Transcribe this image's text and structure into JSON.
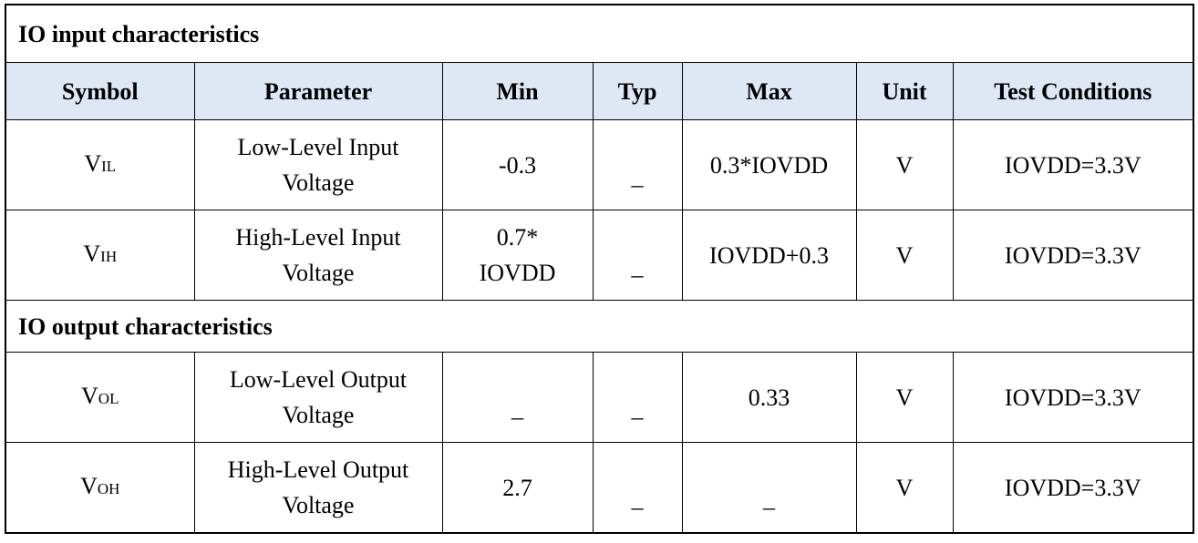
{
  "table": {
    "columns": [
      "Symbol",
      "Parameter",
      "Min",
      "Typ",
      "Max",
      "Unit",
      "Test Conditions"
    ],
    "sections": [
      {
        "title": "IO input characteristics",
        "rows": [
          [
            {
              "main": "V",
              "sub": "IL"
            },
            "Low-Level Input\nVoltage",
            "-0.3",
            "_",
            "0.3*IOVDD",
            "V",
            "IOVDD=3.3V"
          ],
          [
            {
              "main": "V",
              "sub": "IH"
            },
            "High-Level Input\nVoltage",
            "0.7*\nIOVDD",
            "_",
            "IOVDD+0.3",
            "V",
            "IOVDD=3.3V"
          ]
        ]
      },
      {
        "title": "IO output characteristics",
        "rows": [
          [
            {
              "main": "V",
              "sub": "OL"
            },
            "Low-Level Output\nVoltage",
            "_",
            "_",
            "0.33",
            "V",
            "IOVDD=3.3V"
          ],
          [
            {
              "main": "V",
              "sub": "OH"
            },
            "High-Level Output\nVoltage",
            "2.7",
            "_",
            "_",
            "V",
            "IOVDD=3.3V"
          ]
        ]
      }
    ]
  }
}
